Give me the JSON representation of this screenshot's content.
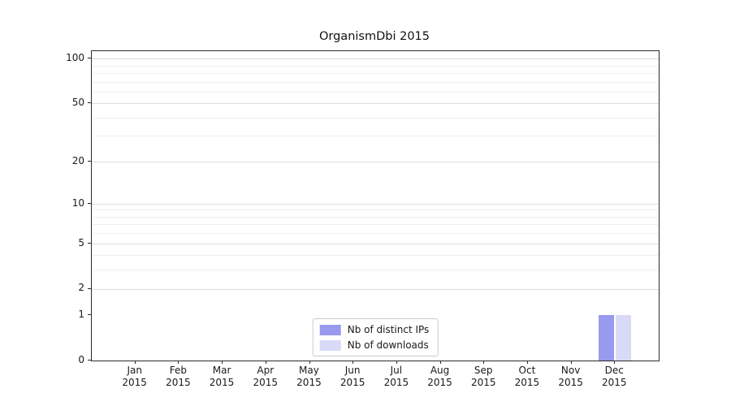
{
  "chart_data": {
    "type": "bar",
    "title": "OrganismDbi 2015",
    "categories": [
      "Jan",
      "Feb",
      "Mar",
      "Apr",
      "May",
      "Jun",
      "Jul",
      "Aug",
      "Sep",
      "Oct",
      "Nov",
      "Dec"
    ],
    "category_year": "2015",
    "series": [
      {
        "name": "Nb of distinct IPs",
        "color": "#9999ee",
        "values": [
          0,
          0,
          0,
          0,
          0,
          0,
          0,
          0,
          0,
          0,
          0,
          1
        ]
      },
      {
        "name": "Nb of downloads",
        "color": "#d9d9f8",
        "values": [
          0,
          0,
          0,
          0,
          0,
          0,
          0,
          0,
          0,
          0,
          0,
          1
        ]
      }
    ],
    "yscale": "log1p",
    "ylim": [
      0,
      112
    ],
    "ytick_labels": [
      100,
      50,
      20,
      10,
      5,
      2,
      1,
      0
    ],
    "minor_gridlines": [
      2,
      3,
      4,
      5,
      6,
      7,
      8,
      9,
      10,
      20,
      30,
      40,
      50,
      60,
      70,
      80,
      90,
      100
    ],
    "grid": true,
    "legend_position": "bottom-center"
  }
}
